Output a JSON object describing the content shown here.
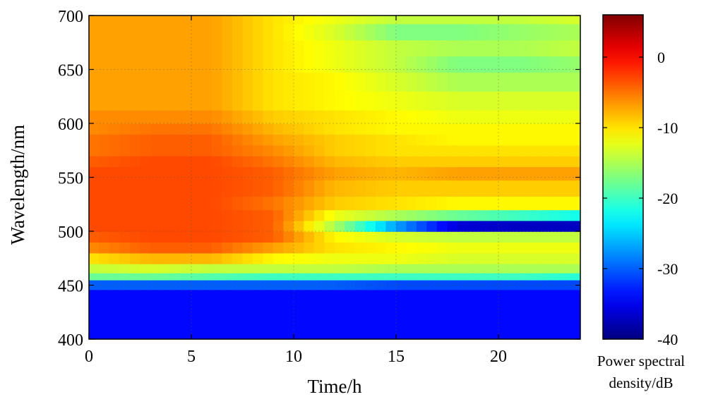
{
  "chart_data": {
    "type": "heatmap",
    "title": "",
    "xlabel": "Time/h",
    "ylabel": "Wavelength/nm",
    "xlim": [
      0,
      24
    ],
    "ylim": [
      400,
      700
    ],
    "xticks": [
      0,
      5,
      10,
      15,
      20
    ],
    "xtick_labels": [
      "0",
      "5",
      "10",
      "15",
      "20"
    ],
    "yticks": [
      400,
      450,
      500,
      550,
      600,
      650,
      700
    ],
    "ytick_labels": [
      "400",
      "450",
      "500",
      "550",
      "600",
      "650",
      "700"
    ],
    "grid": true,
    "colormap": "jet",
    "colorbar": {
      "label_lines": [
        "Power spectral",
        "density/dB"
      ],
      "range": [
        -40,
        6
      ],
      "ticks": [
        0,
        -10,
        -20,
        -30,
        -40
      ],
      "tick_labels": [
        "0",
        "-10",
        "-20",
        "-30",
        "-40"
      ]
    },
    "x": [
      0,
      3,
      6,
      9,
      12,
      15,
      18,
      21,
      24
    ],
    "y": [
      405,
      420,
      440,
      452,
      458,
      465,
      475,
      485,
      495,
      505,
      515,
      525,
      540,
      555,
      565,
      575,
      585,
      595,
      605,
      620,
      640,
      655,
      670,
      685,
      700
    ],
    "z": [
      [
        -34,
        -34,
        -34,
        -34,
        -34,
        -34,
        -34,
        -34,
        -34
      ],
      [
        -34,
        -34,
        -34,
        -34,
        -34,
        -34,
        -34,
        -34,
        -34
      ],
      [
        -34,
        -34,
        -34,
        -34,
        -34,
        -34,
        -34,
        -34,
        -34
      ],
      [
        -30,
        -30,
        -30,
        -30,
        -30,
        -31,
        -31,
        -31,
        -31
      ],
      [
        -18,
        -18,
        -19,
        -20,
        -20,
        -20,
        -20,
        -20,
        -21
      ],
      [
        -14,
        -13,
        -14,
        -14,
        -14,
        -15,
        -15,
        -15,
        -15
      ],
      [
        -10,
        -8,
        -8,
        -11,
        -12,
        -12,
        -13,
        -13,
        -13
      ],
      [
        -6,
        -4,
        -4,
        -7,
        -10,
        -11,
        -12,
        -12,
        -12
      ],
      [
        -4,
        -3,
        -3,
        -4,
        -11,
        -13,
        -14,
        -14,
        -14
      ],
      [
        -3,
        -3,
        -3,
        -4,
        -15,
        -27,
        -36,
        -37,
        -37
      ],
      [
        -3,
        -3,
        -3,
        -4,
        -12,
        -15,
        -18,
        -20,
        -22
      ],
      [
        -3,
        -3,
        -3,
        -5,
        -9,
        -10,
        -11,
        -11,
        -11
      ],
      [
        -3,
        -3,
        -3,
        -4,
        -8,
        -9,
        -9,
        -9,
        -9
      ],
      [
        -3,
        -3,
        -3,
        -4,
        -7,
        -8,
        -7,
        -7,
        -7
      ],
      [
        -4,
        -3,
        -3,
        -5,
        -8,
        -9,
        -9,
        -9,
        -9
      ],
      [
        -5,
        -4,
        -4,
        -6,
        -9,
        -10,
        -10,
        -10,
        -10
      ],
      [
        -5,
        -4,
        -4,
        -7,
        -9,
        -10,
        -11,
        -11,
        -11
      ],
      [
        -6,
        -5,
        -5,
        -8,
        -10,
        -11,
        -11,
        -11,
        -11
      ],
      [
        -6,
        -6,
        -6,
        -9,
        -10,
        -11,
        -12,
        -12,
        -12
      ],
      [
        -7,
        -7,
        -7,
        -10,
        -11,
        -12,
        -13,
        -13,
        -13
      ],
      [
        -7,
        -7,
        -7,
        -10,
        -11,
        -13,
        -15,
        -15,
        -15
      ],
      [
        -7,
        -7,
        -7,
        -10,
        -12,
        -14,
        -17,
        -17,
        -16
      ],
      [
        -7,
        -7,
        -7,
        -10,
        -12,
        -14,
        -15,
        -15,
        -14
      ],
      [
        -7,
        -7,
        -7,
        -10,
        -13,
        -17,
        -17,
        -16,
        -15
      ],
      [
        -7,
        -7,
        -7,
        -10,
        -12,
        -14,
        -14,
        -14,
        -13
      ]
    ]
  }
}
